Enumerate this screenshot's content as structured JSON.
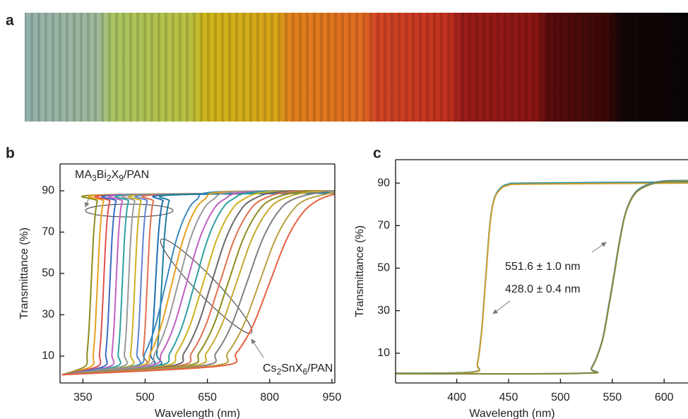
{
  "panel_label": "a",
  "chart_data": [
    {
      "type": "line",
      "panel_label": "b",
      "xlabel": "Wavelength (nm)",
      "ylabel": "Transmittance (%)",
      "xlim": [
        295,
        957
      ],
      "ylim": [
        -3,
        103
      ],
      "xticks": [
        350,
        500,
        650,
        800,
        950
      ],
      "yticks": [
        10,
        30,
        50,
        70,
        90
      ],
      "annotations": [
        {
          "parts": [
            "MA",
            "3",
            "Bi",
            "2",
            "X",
            "9",
            "/PAN"
          ]
        },
        {
          "parts": [
            "Cs",
            "2",
            "SnX",
            "6",
            "/PAN"
          ]
        }
      ],
      "series": [
        {
          "color": "#8c8c1e",
          "x": [
            300,
            355,
            360,
            365,
            370,
            375,
            380,
            385,
            395,
            1000
          ],
          "values": [
            1,
            5,
            11,
            24,
            45,
            66,
            79,
            85,
            88,
            89
          ]
        },
        {
          "color": "#e8a020",
          "x": [
            300,
            370,
            375,
            380,
            385,
            390,
            395,
            400,
            410,
            1000
          ],
          "values": [
            1,
            5,
            11,
            24,
            45,
            66,
            79,
            85,
            88,
            89
          ]
        },
        {
          "color": "#e05050",
          "x": [
            300,
            385,
            390,
            395,
            400,
            405,
            410,
            415,
            425,
            1000
          ],
          "values": [
            1,
            5,
            11,
            24,
            45,
            66,
            79,
            85,
            88,
            89
          ]
        },
        {
          "color": "#3a6ac0",
          "x": [
            300,
            400,
            405,
            410,
            415,
            420,
            425,
            430,
            440,
            1000
          ],
          "values": [
            1,
            5,
            11,
            24,
            45,
            66,
            79,
            85,
            88,
            89
          ]
        },
        {
          "color": "#c060c0",
          "x": [
            300,
            415,
            420,
            425,
            430,
            435,
            440,
            445,
            455,
            1000
          ],
          "values": [
            1,
            5,
            11,
            24,
            45,
            66,
            79,
            85,
            88,
            89
          ]
        },
        {
          "color": "#30a0a0",
          "x": [
            300,
            430,
            435,
            440,
            445,
            450,
            455,
            460,
            470,
            1000
          ],
          "values": [
            1,
            5,
            11,
            24,
            45,
            66,
            79,
            85,
            88,
            89
          ]
        },
        {
          "color": "#9a9a9a",
          "x": [
            300,
            445,
            450,
            455,
            460,
            465,
            470,
            475,
            485,
            1000
          ],
          "values": [
            1,
            5,
            11,
            24,
            45,
            66,
            79,
            85,
            88,
            89
          ]
        },
        {
          "color": "#d0b020",
          "x": [
            300,
            460,
            465,
            470,
            475,
            480,
            485,
            490,
            500,
            1000
          ],
          "values": [
            1,
            5,
            11,
            24,
            45,
            66,
            79,
            85,
            88,
            89
          ]
        },
        {
          "color": "#6080d0",
          "x": [
            300,
            475,
            480,
            485,
            490,
            495,
            500,
            505,
            515,
            1000
          ],
          "values": [
            1,
            5,
            11,
            24,
            45,
            66,
            79,
            85,
            88,
            89
          ]
        },
        {
          "color": "#e07050",
          "x": [
            300,
            490,
            495,
            500,
            505,
            510,
            515,
            520,
            530,
            1000
          ],
          "values": [
            1,
            5,
            11,
            24,
            45,
            66,
            79,
            85,
            88,
            89
          ]
        },
        {
          "color": "#1f6fb0",
          "x": [
            300,
            507,
            513,
            519,
            525,
            531,
            537,
            543,
            555,
            1000
          ],
          "values": [
            1,
            5,
            11,
            24,
            45,
            66,
            79,
            85,
            88,
            89
          ]
        },
        {
          "color": "#2080a0",
          "x": [
            300,
            522,
            528,
            534,
            540,
            546,
            552,
            558,
            570,
            1000
          ],
          "values": [
            1,
            5,
            11,
            24,
            45,
            66,
            79,
            85,
            88,
            89
          ]
        },
        {
          "color": "#3a8ac0",
          "x": [
            300,
            475,
            500,
            525,
            550,
            575,
            600,
            625,
            675,
            1000
          ],
          "values": [
            1,
            5.2,
            11.6,
            24.9,
            45.5,
            66.1,
            79.4,
            85.8,
            89.5,
            90
          ]
        },
        {
          "color": "#e8a020",
          "x": [
            300,
            487,
            513,
            539,
            565,
            591,
            617,
            643,
            695,
            1000
          ],
          "values": [
            1,
            5.2,
            11.6,
            24.9,
            45.5,
            66.1,
            79.4,
            85.8,
            89.5,
            90
          ]
        },
        {
          "color": "#9a9a9a",
          "x": [
            300,
            496,
            524,
            552,
            580,
            608,
            636,
            664,
            720,
            1000
          ],
          "values": [
            1,
            5.2,
            11.6,
            24.9,
            45.5,
            66.1,
            79.4,
            85.8,
            89.5,
            90
          ]
        },
        {
          "color": "#c060c0",
          "x": [
            300,
            510,
            540,
            570,
            600,
            630,
            660,
            690,
            750,
            1000
          ],
          "values": [
            1,
            5.2,
            11.6,
            24.9,
            45.5,
            66.1,
            79.4,
            85.8,
            89.5,
            90
          ]
        },
        {
          "color": "#30a0a0",
          "x": [
            300,
            530,
            560,
            590,
            620,
            650,
            680,
            710,
            770,
            1000
          ],
          "values": [
            1,
            5.2,
            11.6,
            24.9,
            45.5,
            66.1,
            79.4,
            85.8,
            89.5,
            90
          ]
        },
        {
          "color": "#d0b020",
          "x": [
            300,
            544,
            576,
            608,
            640,
            672,
            704,
            736,
            800,
            1000
          ],
          "values": [
            1,
            5.2,
            11.6,
            24.9,
            45.5,
            66.1,
            79.4,
            85.8,
            89.5,
            90
          ]
        },
        {
          "color": "#6a6a6a",
          "x": [
            300,
            561,
            594,
            627,
            660,
            693,
            726,
            759,
            825,
            1000
          ],
          "values": [
            1,
            5.2,
            11.6,
            24.9,
            45.5,
            66.1,
            79.4,
            85.8,
            89.5,
            90
          ]
        },
        {
          "color": "#e07050",
          "x": [
            300,
            578,
            612,
            646,
            680,
            714,
            748,
            782,
            850,
            1000
          ],
          "values": [
            1,
            5.2,
            11.6,
            24.9,
            45.5,
            66.1,
            79.4,
            85.8,
            89.5,
            90
          ]
        },
        {
          "color": "#8c8c1e",
          "x": [
            300,
            595,
            630,
            665,
            700,
            735,
            770,
            805,
            875,
            1000
          ],
          "values": [
            1,
            5.2,
            11.6,
            24.9,
            45.5,
            66.1,
            79.4,
            85.8,
            89.5,
            90
          ]
        },
        {
          "color": "#c8a830",
          "x": [
            300,
            612,
            648,
            684,
            720,
            756,
            792,
            828,
            900,
            1000
          ],
          "values": [
            1,
            5.2,
            11.6,
            24.9,
            45.5,
            66.1,
            79.4,
            85.8,
            89.5,
            90
          ]
        },
        {
          "color": "#808080",
          "x": [
            300,
            634,
            671,
            708,
            745,
            782,
            819,
            856,
            930,
            1000
          ],
          "values": [
            1,
            5.2,
            11.6,
            24.9,
            45.5,
            66.1,
            79.4,
            85.8,
            89.5,
            90
          ]
        },
        {
          "color": "#b8a040",
          "x": [
            300,
            661,
            699,
            737,
            775,
            813,
            851,
            889,
            965,
            1000
          ],
          "values": [
            1,
            5.2,
            11.6,
            24.9,
            45.5,
            66.1,
            79.4,
            85.8,
            89.5,
            90
          ]
        },
        {
          "color": "#e86040",
          "x": [
            300,
            680,
            720,
            760,
            800,
            840,
            880,
            920,
            960,
            1000
          ],
          "values": [
            1,
            5.2,
            11.6,
            24.9,
            45.5,
            66.1,
            79.4,
            85.8,
            88.5,
            90
          ]
        }
      ]
    },
    {
      "type": "line",
      "panel_label": "c",
      "xlabel": "Wavelength (nm)",
      "ylabel": "Transmittance (%)",
      "xlim": [
        341,
        623
      ],
      "ylim": [
        -4,
        101
      ],
      "xticks": [
        400,
        450,
        500,
        550,
        600
      ],
      "yticks": [
        10,
        30,
        50,
        70,
        90
      ],
      "annotations": [
        {
          "parts": [
            "551.6 ± 1.0 nm"
          ]
        },
        {
          "parts": [
            "428.0 ± 0.4 nm"
          ]
        }
      ],
      "series": [
        {
          "color": "#2a8fa0",
          "x": [
            341,
            415,
            420,
            424,
            428,
            432,
            436,
            442,
            450,
            470,
            623
          ],
          "values": [
            0.6,
            1.2,
            5.5,
            21,
            46,
            71,
            82.5,
            87.5,
            89.5,
            90,
            90.5
          ]
        },
        {
          "color": "#d0a030",
          "x": [
            341,
            415,
            420,
            424,
            428,
            432,
            436,
            442,
            450,
            470,
            623
          ],
          "values": [
            0.5,
            1,
            5,
            20,
            45,
            70,
            82,
            87,
            89,
            89.5,
            90
          ]
        },
        {
          "color": "#4a8a9a",
          "x": [
            341,
            520,
            530,
            540,
            546,
            551.6,
            557,
            563,
            572,
            585,
            600,
            623
          ],
          "values": [
            0.4,
            0.6,
            3.3,
            15.5,
            31,
            47,
            63,
            76.5,
            85.5,
            89.5,
            91,
            91.2
          ]
        },
        {
          "color": "#8a8a3a",
          "x": [
            341,
            520,
            530,
            540,
            546,
            551.6,
            557,
            563,
            572,
            585,
            600,
            623
          ],
          "values": [
            0.3,
            0.5,
            3,
            15,
            30,
            46,
            62,
            76,
            85,
            89,
            90.5,
            91
          ]
        }
      ]
    }
  ]
}
